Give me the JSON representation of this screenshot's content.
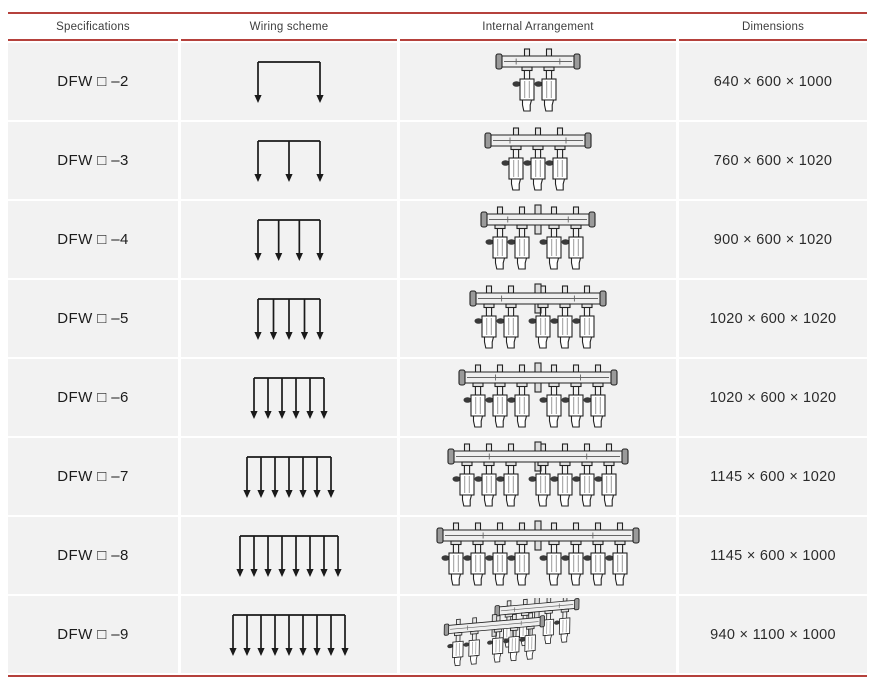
{
  "colors": {
    "rule_red": "#b5413c",
    "row_bg": "#f2f2f2",
    "diagram_ink": "#1a1a1a",
    "page_bg": "#ffffff"
  },
  "header": {
    "columns": [
      "Specifications",
      "Wiring scheme",
      "Internal Arrangement",
      "Dimensions"
    ]
  },
  "rows": [
    {
      "spec": "DFW □ –2",
      "outputs": 2,
      "view": "front",
      "dimensions": "640 × 600 × 1000"
    },
    {
      "spec": "DFW □ –3",
      "outputs": 3,
      "view": "front",
      "dimensions": "760 × 600 × 1020"
    },
    {
      "spec": "DFW □ –4",
      "outputs": 4,
      "view": "front",
      "dimensions": "900 × 600 × 1020"
    },
    {
      "spec": "DFW □ –5",
      "outputs": 5,
      "view": "front",
      "dimensions": "1020 × 600 × 1020"
    },
    {
      "spec": "DFW □ –6",
      "outputs": 6,
      "view": "front",
      "dimensions": "1020 × 600 × 1020"
    },
    {
      "spec": "DFW □ –7",
      "outputs": 7,
      "view": "front",
      "dimensions": "1145 × 600 × 1020"
    },
    {
      "spec": "DFW □ –8",
      "outputs": 8,
      "view": "front",
      "dimensions": "1145 × 600 × 1000"
    },
    {
      "spec": "DFW □ –9",
      "outputs": 9,
      "view": "isometric",
      "dimensions": "940 × 1100 × 1000"
    }
  ]
}
